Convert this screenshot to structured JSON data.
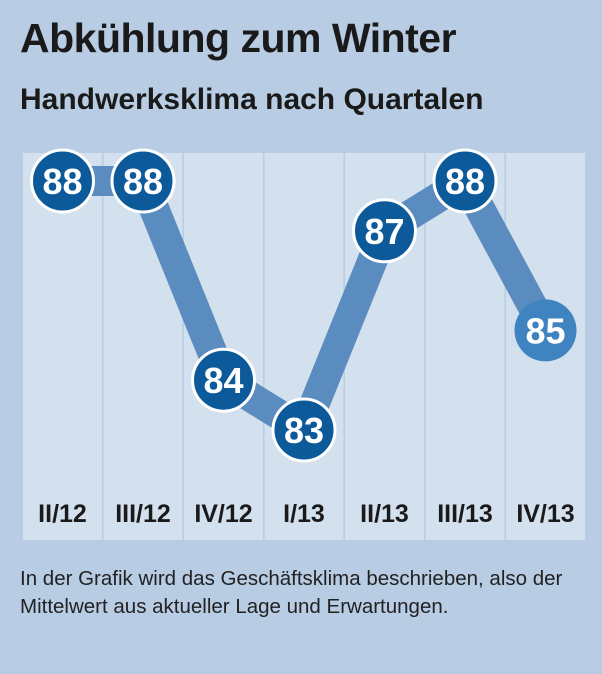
{
  "chart_data": {
    "type": "line",
    "title": "Abkühlung zum Winter",
    "subtitle": "Handwerksklima nach Quartalen",
    "categories": [
      "II/12",
      "III/12",
      "IV/12",
      "I/13",
      "II/13",
      "III/13",
      "IV/13"
    ],
    "series": [
      {
        "values": [
          88,
          88,
          84,
          83,
          87,
          88,
          85
        ]
      }
    ],
    "xlabel": "",
    "ylabel": "",
    "ylim": [
      83,
      88
    ],
    "grid": false,
    "data_labels": true,
    "colors": {
      "background": "#b8cce4",
      "column_band": "#d3e0ee",
      "line": "#5b8cbf",
      "marker": "#0d5a9a",
      "marker_last": "#3f84c0",
      "label_text": "#ffffff"
    }
  },
  "caption": "In der Grafik wird das Geschäftsklima beschrieben, also der Mittelwert aus aktueller Lage und Erwartungen."
}
